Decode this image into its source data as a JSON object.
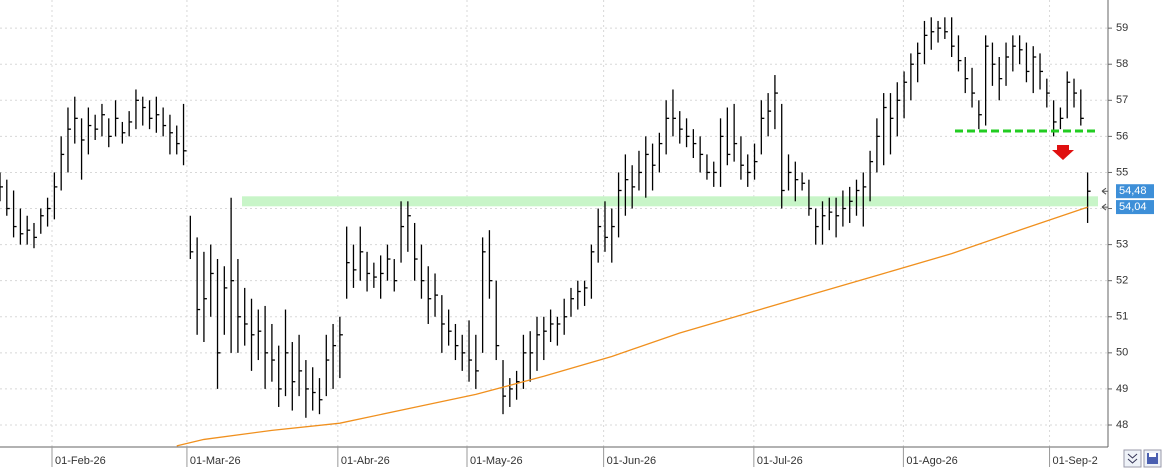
{
  "chart_data": {
    "type": "ohlc",
    "xlim": [
      0,
      163
    ],
    "xticks": [
      {
        "value": 7.65,
        "label": "01-Feb-26"
      },
      {
        "value": 27.5,
        "label": "01-Mar-26"
      },
      {
        "value": 49.7,
        "label": "01-Abr-26"
      },
      {
        "value": 68.7,
        "label": "01-May-26"
      },
      {
        "value": 88.8,
        "label": "01-Jun-26"
      },
      {
        "value": 110.9,
        "label": "01-Jul-26"
      },
      {
        "value": 132.9,
        "label": "01-Ago-26"
      },
      {
        "value": 154.4,
        "label": "01-Sep-2"
      }
    ],
    "ylim": [
      47.39,
      59.78
    ],
    "yticks": [
      48,
      49,
      50,
      51,
      52,
      53,
      54,
      55,
      56,
      57,
      58,
      59
    ],
    "grid": true,
    "color": "#000000",
    "x": [
      0,
      1,
      2,
      3,
      4,
      5,
      6,
      7,
      8,
      9,
      10,
      11,
      12,
      13,
      14,
      15,
      16,
      17,
      18,
      19,
      20,
      21,
      22,
      23,
      24,
      25,
      26,
      27,
      28,
      29,
      30,
      31,
      32,
      33,
      34,
      35,
      36,
      37,
      38,
      39,
      40,
      41,
      42,
      43,
      44,
      45,
      46,
      47,
      48,
      49,
      50,
      51,
      52,
      53,
      54,
      55,
      56,
      57,
      58,
      59,
      60,
      61,
      62,
      63,
      64,
      65,
      66,
      67,
      68,
      69,
      70,
      71,
      72,
      73,
      74,
      75,
      76,
      77,
      78,
      79,
      80,
      81,
      82,
      83,
      84,
      85,
      86,
      87,
      88,
      89,
      90,
      91,
      92,
      93,
      94,
      95,
      96,
      97,
      98,
      99,
      100,
      101,
      102,
      103,
      104,
      105,
      106,
      107,
      108,
      109,
      110,
      111,
      112,
      113,
      114,
      115,
      116,
      117,
      118,
      119,
      120,
      121,
      122,
      123,
      124,
      125,
      126,
      127,
      128,
      129,
      130,
      131,
      132,
      133,
      134,
      135,
      136,
      137,
      138,
      139,
      140,
      141,
      142,
      143,
      144,
      145,
      146,
      147,
      148,
      149,
      150,
      151,
      152,
      153,
      154,
      155,
      156,
      157,
      158,
      159,
      160
    ],
    "high": [
      55.0,
      54.8,
      54.5,
      54.0,
      53.8,
      53.6,
      54.0,
      54.3,
      55.0,
      56.0,
      56.8,
      57.1,
      56.5,
      56.8,
      56.6,
      56.9,
      56.5,
      57.0,
      56.4,
      56.7,
      57.3,
      57.1,
      57.0,
      57.1,
      56.8,
      56.6,
      56.3,
      56.9,
      53.8,
      53.2,
      52.8,
      53.0,
      52.6,
      52.4,
      54.3,
      52.6,
      51.8,
      51.5,
      51.2,
      51.3,
      50.8,
      50.2,
      51.2,
      50.3,
      50.5,
      49.8,
      49.6,
      49.3,
      50.5,
      50.8,
      51.0,
      53.5,
      53.0,
      53.5,
      52.8,
      52.5,
      52.7,
      53.0,
      52.6,
      54.2,
      54.2,
      53.6,
      53.0,
      52.4,
      52.2,
      51.6,
      51.2,
      50.8,
      50.5,
      50.9,
      50.5,
      53.2,
      53.4,
      52.0,
      49.8,
      49.3,
      49.5,
      50.5,
      50.6,
      51.0,
      51.0,
      51.2,
      51.0,
      51.5,
      51.8,
      52.0,
      52.0,
      53.0,
      54.0,
      54.2,
      54.0,
      55.0,
      55.5,
      55.2,
      55.6,
      56.0,
      55.8,
      56.1,
      57.0,
      57.3,
      56.7,
      56.5,
      56.2,
      56.0,
      55.5,
      55.3,
      56.5,
      56.8,
      56.9,
      56.0,
      55.5,
      55.8,
      57.0,
      57.2,
      57.7,
      56.9,
      55.5,
      55.3,
      55.0,
      54.8,
      54.0,
      54.2,
      54.3,
      54.3,
      54.5,
      54.6,
      54.8,
      55.0,
      55.6,
      56.5,
      57.2,
      57.2,
      57.5,
      57.8,
      58.3,
      58.6,
      59.2,
      59.3,
      59.2,
      59.3,
      59.3,
      58.8,
      58.2,
      57.9,
      57.0,
      58.8,
      58.6,
      58.2,
      58.6,
      58.8,
      58.8,
      58.6,
      58.5,
      58.3,
      57.6,
      57.0,
      56.8,
      57.8,
      57.6,
      57.3,
      55.0
    ],
    "low": [
      54.2,
      53.8,
      53.2,
      53.0,
      53.0,
      52.9,
      53.3,
      53.5,
      53.7,
      54.5,
      55.0,
      55.8,
      54.8,
      55.5,
      55.9,
      56.0,
      55.7,
      56.0,
      55.8,
      56.0,
      56.2,
      56.3,
      56.2,
      56.1,
      56.0,
      55.5,
      55.5,
      55.2,
      52.6,
      50.5,
      50.3,
      51.0,
      49.0,
      50.5,
      50.0,
      50.0,
      50.2,
      49.5,
      49.8,
      49.0,
      49.2,
      48.5,
      48.8,
      48.4,
      48.8,
      48.2,
      48.4,
      48.3,
      48.8,
      49.0,
      49.3,
      51.5,
      51.8,
      52.0,
      51.7,
      51.8,
      51.5,
      52.0,
      51.7,
      52.5,
      52.8,
      52.0,
      51.5,
      50.8,
      51.0,
      50.0,
      50.2,
      49.8,
      49.5,
      49.2,
      49.0,
      50.0,
      51.5,
      49.8,
      48.3,
      48.5,
      48.7,
      49.0,
      49.2,
      49.5,
      49.8,
      50.3,
      50.2,
      50.5,
      51.0,
      51.2,
      51.3,
      51.5,
      52.5,
      52.8,
      52.5,
      53.2,
      53.8,
      54.0,
      54.5,
      54.3,
      54.5,
      55.0,
      55.5,
      56.0,
      55.8,
      55.7,
      55.4,
      55.0,
      54.8,
      54.6,
      54.6,
      55.2,
      55.3,
      54.8,
      54.6,
      54.8,
      55.5,
      56.0,
      56.2,
      54.0,
      54.5,
      54.2,
      54.5,
      53.8,
      53.0,
      53.0,
      53.4,
      53.2,
      53.5,
      53.6,
      53.8,
      53.5,
      54.2,
      55.0,
      55.2,
      55.5,
      56.0,
      56.5,
      57.0,
      57.5,
      58.0,
      58.4,
      58.6,
      58.7,
      58.2,
      57.8,
      57.2,
      56.8,
      56.2,
      56.3,
      57.4,
      57.0,
      57.4,
      57.8,
      58.0,
      57.5,
      57.2,
      57.3,
      56.8,
      56.0,
      56.2,
      56.5,
      56.8,
      56.3,
      53.6
    ],
    "close": [
      54.6,
      54.0,
      53.5,
      53.3,
      53.4,
      53.2,
      53.8,
      54.0,
      54.6,
      55.5,
      56.2,
      56.5,
      55.9,
      56.3,
      56.2,
      56.6,
      56.0,
      56.5,
      56.1,
      56.4,
      57.0,
      56.8,
      56.5,
      56.6,
      56.3,
      56.1,
      55.8,
      55.6,
      52.8,
      51.2,
      51.5,
      52.2,
      50.0,
      51.8,
      52.0,
      51.0,
      50.8,
      50.5,
      50.6,
      50.0,
      49.8,
      49.0,
      50.0,
      49.2,
      49.5,
      49.0,
      48.9,
      48.7,
      49.8,
      50.2,
      50.5,
      52.5,
      52.3,
      52.8,
      52.2,
      52.1,
      52.2,
      52.6,
      52.0,
      53.5,
      53.8,
      52.6,
      52.0,
      51.5,
      51.6,
      50.8,
      50.6,
      50.2,
      50.0,
      49.8,
      49.5,
      52.8,
      52.0,
      50.2,
      48.8,
      49.0,
      49.2,
      50.0,
      50.0,
      50.5,
      50.6,
      50.8,
      50.8,
      51.0,
      51.5,
      51.7,
      51.8,
      52.8,
      53.5,
      53.2,
      53.5,
      54.5,
      54.8,
      54.6,
      55.0,
      55.5,
      55.2,
      55.8,
      56.5,
      56.5,
      56.2,
      56.0,
      55.8,
      55.5,
      55.0,
      55.0,
      56.0,
      55.5,
      55.8,
      55.2,
      55.0,
      55.3,
      56.5,
      56.7,
      57.2,
      54.5,
      55.0,
      54.8,
      54.7,
      54.0,
      53.5,
      53.8,
      53.9,
      53.8,
      54.0,
      54.2,
      54.5,
      54.6,
      55.3,
      56.0,
      56.8,
      56.5,
      57.0,
      57.5,
      58.0,
      58.3,
      58.8,
      58.9,
      59.0,
      58.9,
      58.5,
      58.1,
      57.6,
      57.2,
      56.6,
      58.5,
      58.0,
      57.6,
      58.2,
      58.5,
      58.4,
      57.8,
      58.2,
      57.8,
      57.2,
      56.4,
      56.5,
      57.5,
      57.2,
      56.5,
      54.48
    ],
    "moving_average": {
      "color": "#f0901e",
      "x": [
        26,
        30,
        40,
        50,
        60,
        70,
        80,
        90,
        100,
        110,
        120,
        130,
        140,
        150,
        160
      ],
      "values": [
        47.42,
        47.6,
        47.85,
        48.05,
        48.45,
        48.85,
        49.35,
        49.9,
        50.55,
        51.1,
        51.65,
        52.2,
        52.75,
        53.4,
        54.04
      ]
    },
    "support_band": {
      "value": 54.2,
      "color": "#c8f5c8"
    },
    "support_line": {
      "value": 56.15,
      "color": "#22cc22"
    },
    "price_labels": [
      {
        "value": 54.48,
        "label": "54,48"
      },
      {
        "value": 54.04,
        "label": "54,04"
      }
    ],
    "price_label_color": "#3d8fd8"
  }
}
